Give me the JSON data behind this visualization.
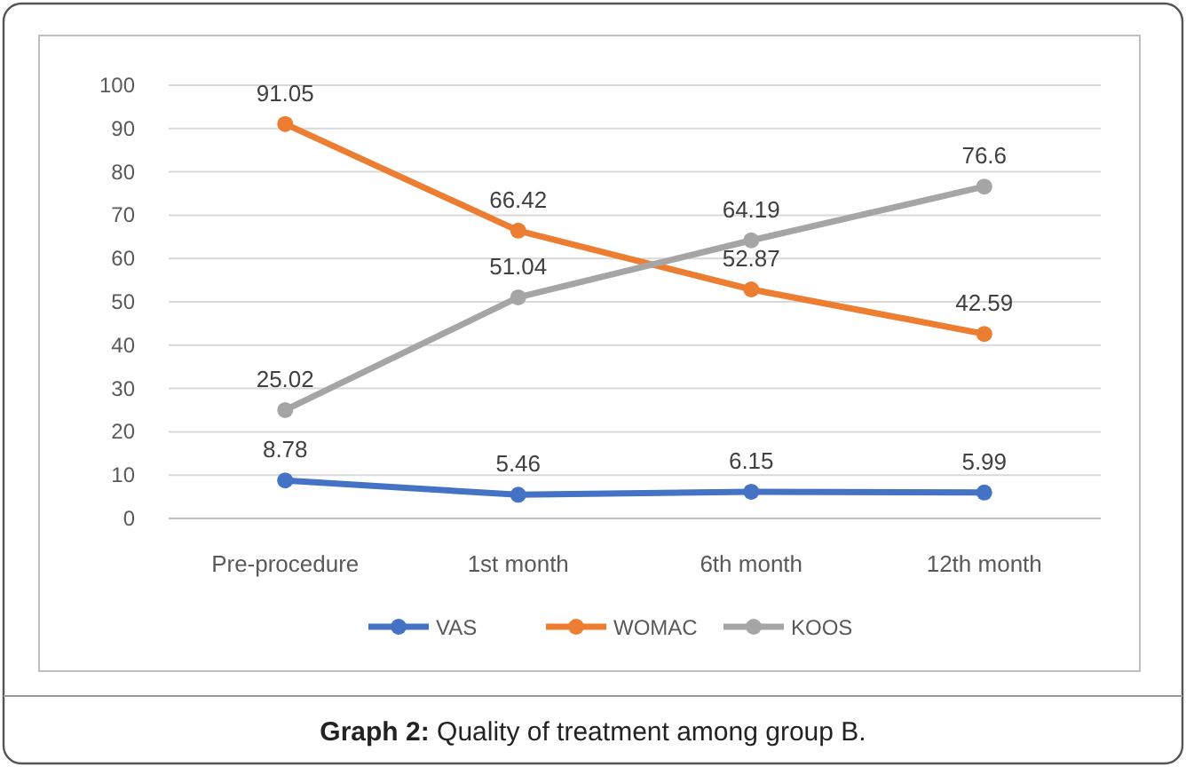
{
  "chart_data": {
    "type": "line",
    "title": "Graph 2: Quality of treatment among group B.",
    "categories": [
      "Pre-procedure",
      "1st month",
      "6th month",
      "12th month"
    ],
    "series": [
      {
        "name": "VAS",
        "color": "#4472c4",
        "values": [
          8.78,
          5.46,
          6.15,
          5.99
        ]
      },
      {
        "name": "WOMAC",
        "color": "#ed7d31",
        "values": [
          91.05,
          66.42,
          52.87,
          42.59
        ]
      },
      {
        "name": "KOOS",
        "color": "#a5a5a5",
        "values": [
          25.02,
          51.04,
          64.19,
          76.6
        ]
      }
    ],
    "ylim": [
      0,
      100
    ],
    "yticks": [
      0,
      10,
      20,
      30,
      40,
      50,
      60,
      70,
      80,
      90,
      100
    ],
    "grid": "y",
    "legend": "bottom",
    "marker": "circle",
    "data_labels": true
  }
}
